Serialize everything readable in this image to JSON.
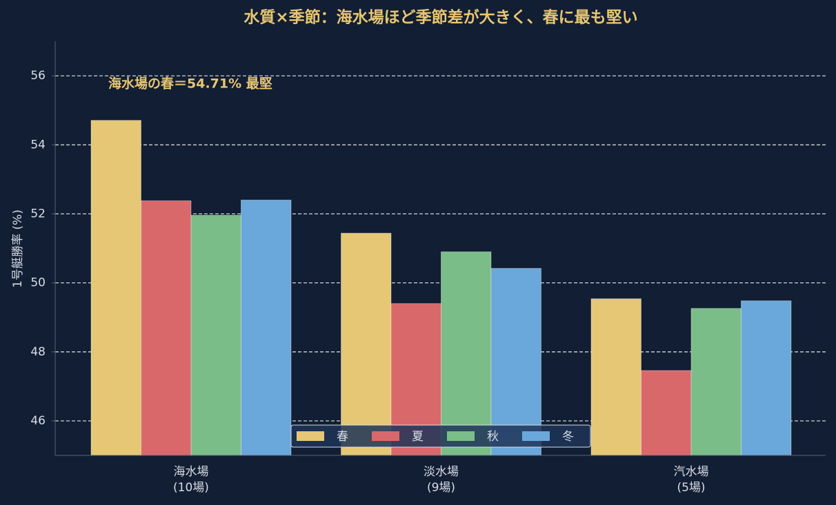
{
  "chart_data": {
    "type": "bar",
    "title": "水質×季節：海水場ほど季節差が大きく、春に最も堅い",
    "y_label": "1号艇勝率 (%)",
    "annotation": "海水場の春＝54.71% 最堅",
    "categories": [
      "海水場\n(10場)",
      "淡水場\n(9場)",
      "汽水場\n(5場)"
    ],
    "series": [
      {
        "name": "春",
        "color": "#e5c775",
        "values": [
          54.71,
          51.44,
          49.54
        ]
      },
      {
        "name": "夏",
        "color": "#d9686b",
        "values": [
          52.38,
          49.4,
          47.46
        ]
      },
      {
        "name": "秋",
        "color": "#7bbd88",
        "values": [
          51.96,
          50.9,
          49.26
        ]
      },
      {
        "name": "冬",
        "color": "#6aa8db",
        "values": [
          52.4,
          50.42,
          49.48
        ]
      }
    ],
    "ylim": [
      45,
      57
    ],
    "yticks": [
      46,
      48,
      50,
      52,
      54,
      56
    ],
    "grid": true,
    "legend": "lower center"
  }
}
